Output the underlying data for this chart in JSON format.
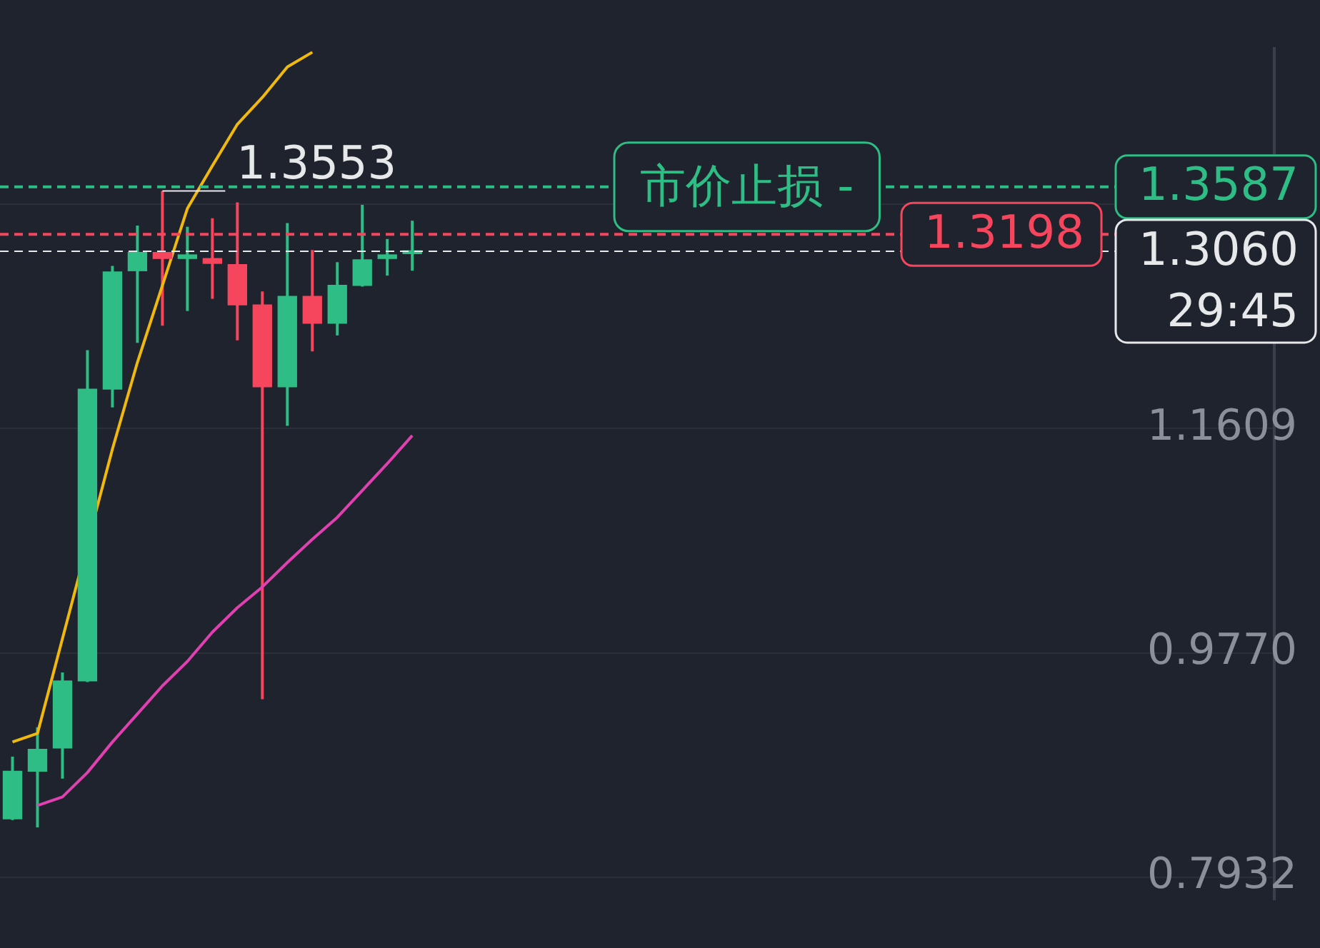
{
  "chart_data": {
    "type": "candlestick",
    "categories": [
      null,
      null,
      null,
      null,
      null,
      null,
      null,
      null,
      null,
      null,
      null,
      null,
      null,
      null,
      null,
      null,
      null,
      null,
      null,
      null,
      null,
      null,
      null,
      null,
      null,
      null,
      null,
      null,
      null,
      null,
      null,
      null,
      null,
      null,
      null,
      null,
      null,
      null,
      null,
      null,
      null,
      null,
      null,
      null,
      null,
      null,
      null,
      null,
      null,
      null,
      null
    ],
    "ohlc": [
      [
        0.841,
        0.892,
        0.84,
        0.88
      ],
      [
        0.88,
        0.916,
        0.834,
        0.898
      ],
      [
        0.899,
        0.961,
        0.874,
        0.954
      ],
      [
        0.954,
        1.225,
        0.953,
        1.193
      ],
      [
        1.193,
        1.294,
        1.178,
        1.289
      ],
      [
        1.29,
        1.327,
        1.231,
        1.305
      ],
      [
        1.305,
        1.3553,
        1.245,
        1.3
      ],
      [
        1.3,
        1.326,
        1.257,
        1.303
      ],
      [
        1.3,
        1.333,
        1.267,
        1.296
      ],
      [
        1.295,
        1.346,
        1.233,
        1.262
      ],
      [
        1.262,
        1.273,
        0.939,
        1.195
      ],
      [
        1.195,
        1.329,
        1.163,
        1.269
      ],
      [
        1.269,
        1.307,
        1.224,
        1.247
      ],
      [
        1.247,
        1.297,
        1.237,
        1.278
      ],
      [
        1.278,
        1.344,
        1.277,
        1.299
      ],
      [
        1.3,
        1.316,
        1.286,
        1.303
      ],
      [
        1.304,
        1.331,
        1.29,
        1.306
      ],
      null,
      null,
      null,
      null,
      null,
      null,
      null,
      null,
      null,
      null,
      null,
      null,
      null,
      null,
      null,
      null,
      null,
      null,
      null,
      null,
      null,
      null,
      null,
      null,
      null,
      null,
      null,
      null,
      null,
      null,
      null,
      null,
      null,
      null
    ],
    "colors": [
      "#2ebd85",
      "#2ebd85",
      "#2ebd85",
      "#2ebd85",
      "#2ebd85",
      "#2ebd85",
      "#f6465d",
      "#2ebd85",
      "#f6465d",
      "#f6465d",
      "#f6465d",
      "#2ebd85",
      "#f6465d",
      "#2ebd85",
      "#2ebd85",
      "#2ebd85",
      "#2ebd85",
      null,
      null,
      null,
      null,
      null,
      null,
      null,
      null,
      null,
      null,
      null,
      null,
      null,
      null,
      null,
      null,
      null,
      null,
      null,
      null,
      null,
      null,
      null,
      null,
      null,
      null,
      null,
      null,
      null,
      null,
      null,
      null,
      null,
      null
    ],
    "series": [
      {
        "type": "line",
        "color": "#f0b90b",
        "values": [
          0.904,
          0.911,
          null,
          null,
          1.144,
          1.215,
          1.278,
          1.341,
          1.376,
          1.41,
          1.432,
          1.457,
          1.469,
          null,
          null,
          null,
          null,
          null,
          null,
          null,
          null,
          null,
          null,
          null,
          null,
          null,
          null,
          null,
          null,
          null,
          null,
          null,
          null,
          null,
          null,
          null,
          null,
          null,
          null,
          null,
          null,
          null,
          null,
          null,
          null,
          null,
          null,
          null,
          null,
          null,
          null
        ]
      },
      {
        "type": "line",
        "color": "#e040b0",
        "values": [
          null,
          0.852,
          0.859,
          0.879,
          0.904,
          0.927,
          0.95,
          0.97,
          0.994,
          1.014,
          1.031,
          1.051,
          1.07,
          1.088,
          1.11,
          1.132,
          1.155,
          null,
          null,
          null,
          null,
          null,
          null,
          null,
          null,
          null,
          null,
          null,
          null,
          null,
          null,
          null,
          null,
          null,
          null,
          null,
          null,
          null,
          null,
          null,
          null,
          null,
          null,
          null,
          null,
          null,
          null,
          null,
          null,
          null,
          null
        ]
      }
    ],
    "ylim": [
      0.775,
      1.472
    ],
    "yticks": [
      0.7932,
      {
        "value": 0.977,
        "label": "0.9770"
      },
      1.1609,
      {
        "value": 1.3448,
        "label": null
      }
    ],
    "grid": "y",
    "tick_labels": "y",
    "legend": false,
    "marker": "none",
    "ref_lines": [
      {
        "axis": "y",
        "value": 1.3587,
        "label": "1.3587",
        "color": "#2ebd85",
        "line_style": "dashed"
      },
      {
        "axis": "y",
        "value": 1.3198,
        "label": "1.3198",
        "color": "#f6465d",
        "line_style": "dashed"
      },
      {
        "axis": "y",
        "value": 1.306,
        "label": "1.3060",
        "color": "#e6e8ea",
        "line_style": "dashed"
      }
    ],
    "annotations": [
      {
        "text": "1.3553",
        "y": 1.3553
      },
      {
        "text": "市价止损 -",
        "y": 1.3587
      },
      "29:45"
    ]
  }
}
